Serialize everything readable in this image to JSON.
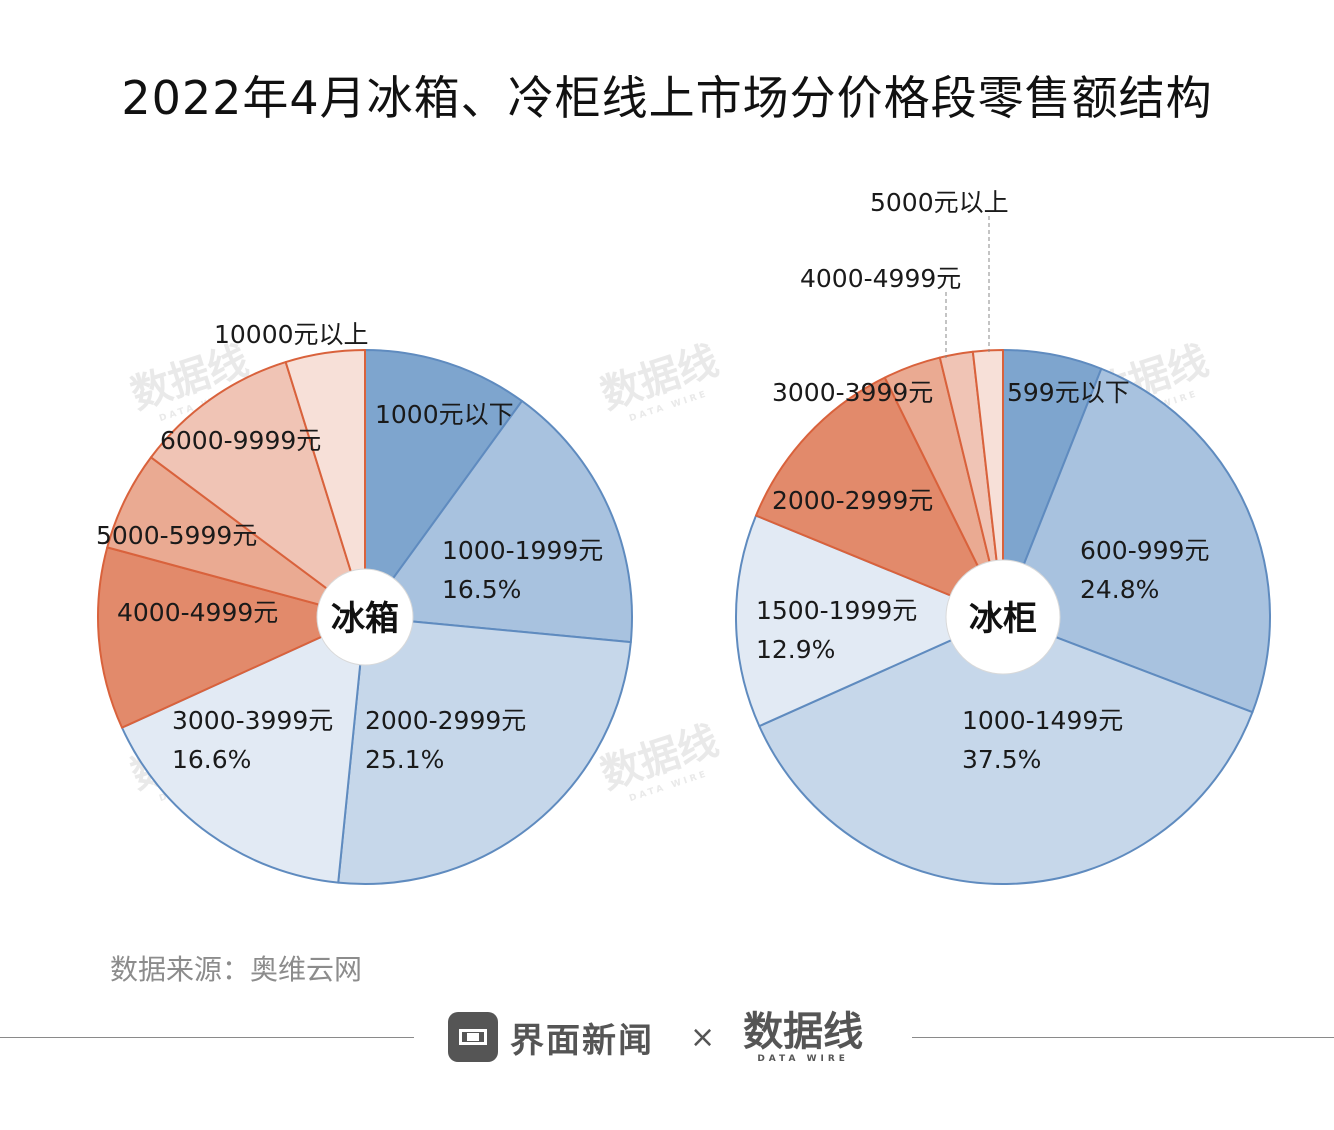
{
  "title": "2022年4月冰箱、冷柜线上市场分价格段零售额结构",
  "watermark": {
    "main": "数据线",
    "sub": "DATA WIRE"
  },
  "source": "数据来源：奥维云网",
  "footer": {
    "brand": "界面新闻",
    "times": "×",
    "partner": "数据线",
    "partner_sub": "DATA WIRE"
  },
  "chart_data": [
    {
      "type": "pie",
      "center_label": "冰箱",
      "slices": [
        {
          "label": "1000元以下",
          "value": 10.0,
          "value_label": "",
          "color": "#7ea5ce"
        },
        {
          "label": "1000-1999元",
          "value": 16.5,
          "value_label": "16.5%",
          "color": "#a8c2df"
        },
        {
          "label": "2000-2999元",
          "value": 25.1,
          "value_label": "25.1%",
          "color": "#c6d7ea"
        },
        {
          "label": "3000-3999元",
          "value": 16.6,
          "value_label": "16.6%",
          "color": "#e2eaf4"
        },
        {
          "label": "4000-4999元",
          "value": 11.0,
          "value_label": "",
          "color": "#e28a6b"
        },
        {
          "label": "5000-5999元",
          "value": 6.0,
          "value_label": "",
          "color": "#eaaa92"
        },
        {
          "label": "6000-9999元",
          "value": 10.0,
          "value_label": "",
          "color": "#f0c4b5"
        },
        {
          "label": "10000元以上",
          "value": 4.8,
          "value_label": "",
          "color": "#f7e0d8"
        }
      ]
    },
    {
      "type": "pie",
      "center_label": "冰柜",
      "slices": [
        {
          "label": "599元以下",
          "value": 6.0,
          "value_label": "",
          "color": "#7ea5ce"
        },
        {
          "label": "600-999元",
          "value": 24.8,
          "value_label": "24.8%",
          "color": "#a8c2df"
        },
        {
          "label": "1000-1499元",
          "value": 37.5,
          "value_label": "37.5%",
          "color": "#c6d7ea"
        },
        {
          "label": "1500-1999元",
          "value": 12.9,
          "value_label": "12.9%",
          "color": "#e2eaf4"
        },
        {
          "label": "2000-2999元",
          "value": 11.5,
          "value_label": "",
          "color": "#e28a6b"
        },
        {
          "label": "3000-3999元",
          "value": 3.5,
          "value_label": "",
          "color": "#eaaa92"
        },
        {
          "label": "4000-4999元",
          "value": 2.0,
          "value_label": "",
          "color": "#f0c4b5"
        },
        {
          "label": "5000元以上",
          "value": 1.8,
          "value_label": "",
          "color": "#f7e0d8"
        }
      ]
    }
  ]
}
